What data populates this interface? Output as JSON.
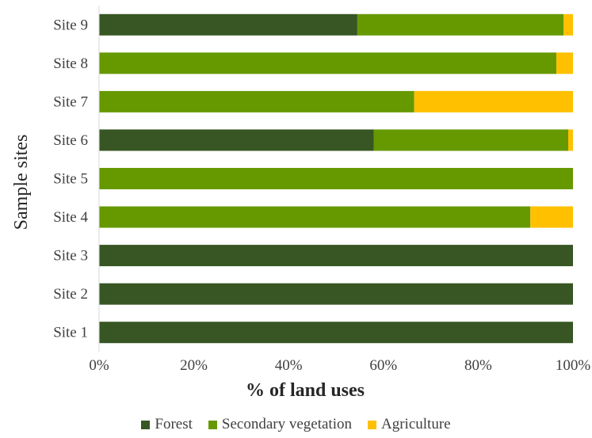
{
  "chart_data": {
    "type": "bar",
    "orientation": "horizontal",
    "stacked": true,
    "normalized_percent": true,
    "categories": [
      "Site 1",
      "Site 2",
      "Site 3",
      "Site 4",
      "Site 5",
      "Site 6",
      "Site 7",
      "Site 8",
      "Site 9"
    ],
    "series": [
      {
        "name": "Forest",
        "color": "#375623",
        "values": [
          100,
          100,
          100,
          0,
          0,
          58,
          0,
          0,
          54.5
        ]
      },
      {
        "name": "Secondary vegetation",
        "color": "#669900",
        "values": [
          0,
          0,
          0,
          91,
          100,
          41,
          66.5,
          96.5,
          43.5
        ]
      },
      {
        "name": "Agriculture",
        "color": "#ffc000",
        "values": [
          0,
          0,
          0,
          9,
          0,
          1,
          33.5,
          3.5,
          2
        ]
      }
    ],
    "xlabel": "% of land uses",
    "ylabel": "Sample sites",
    "xlim": [
      0,
      100
    ],
    "xticks": [
      "0%",
      "20%",
      "40%",
      "60%",
      "80%",
      "100%"
    ],
    "xtick_values": [
      0,
      20,
      40,
      60,
      80,
      100
    ],
    "grid": false,
    "legend_position": "bottom"
  }
}
